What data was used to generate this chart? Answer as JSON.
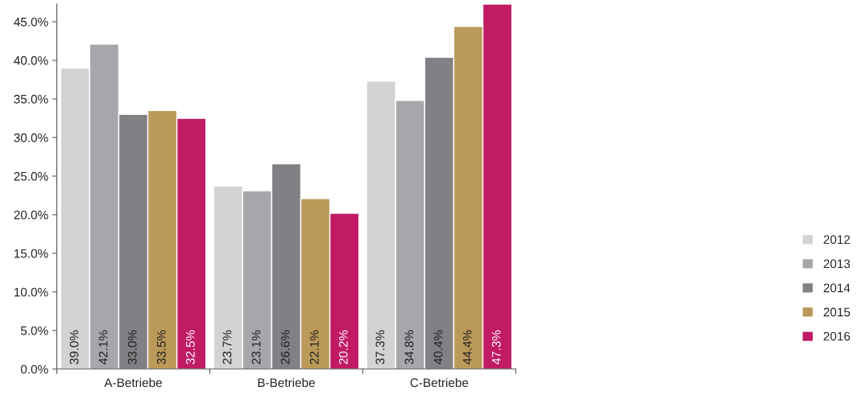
{
  "chart_data": {
    "type": "bar",
    "categories": [
      "A-Betriebe",
      "B-Betriebe",
      "C-Betriebe"
    ],
    "series": [
      {
        "name": "2012",
        "color": "#d3d3d5",
        "values": [
          39.0,
          23.7,
          37.3
        ],
        "value_labels": [
          "39.0%",
          "23.7%",
          "37.3%"
        ]
      },
      {
        "name": "2013",
        "color": "#a7a7ab",
        "values": [
          42.1,
          23.1,
          34.8
        ],
        "value_labels": [
          "42.1%",
          "23.1%",
          "34.8%"
        ]
      },
      {
        "name": "2014",
        "color": "#808085",
        "values": [
          33.0,
          26.6,
          40.4
        ],
        "value_labels": [
          "33.0%",
          "26.6%",
          "40.4%"
        ]
      },
      {
        "name": "2015",
        "color": "#bb9958",
        "values": [
          33.5,
          22.1,
          44.4
        ],
        "value_labels": [
          "33.5%",
          "22.1%",
          "44.4%"
        ]
      },
      {
        "name": "2016",
        "color": "#c21b66",
        "values": [
          32.5,
          20.2,
          47.3
        ],
        "value_labels": [
          "32.5%",
          "20.2%",
          "47.3%"
        ]
      }
    ],
    "ylim": [
      0,
      47.3
    ],
    "yticks": [
      {
        "value": 0,
        "label": "0.0%"
      },
      {
        "value": 5,
        "label": "5.0%"
      },
      {
        "value": 10,
        "label": "10.0%"
      },
      {
        "value": 15,
        "label": "15.0%"
      },
      {
        "value": 20,
        "label": "20.0%"
      },
      {
        "value": 25,
        "label": "25.0%"
      },
      {
        "value": 30,
        "label": "30.0%"
      },
      {
        "value": 35,
        "label": "35.0%"
      },
      {
        "value": 40,
        "label": "40.0%"
      },
      {
        "value": 45,
        "label": "45.0%"
      }
    ],
    "grid": false,
    "legend": "right"
  }
}
